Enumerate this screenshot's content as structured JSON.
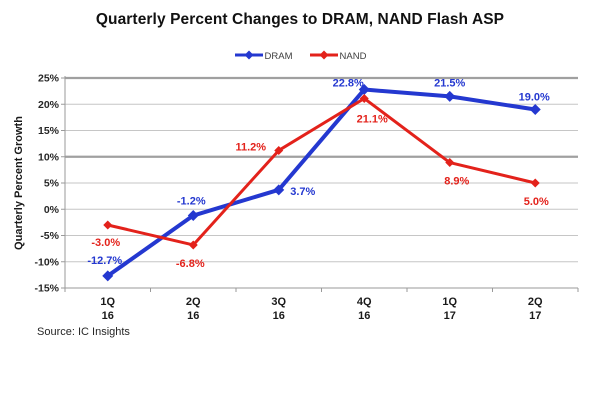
{
  "chart_data": {
    "type": "line",
    "title": "Quarterly Percent Changes to DRAM, NAND Flash ASP",
    "ylabel": "Quarterly Percent Growth",
    "xlabel": "",
    "source": "Source: IC Insights",
    "categories": [
      "1Q",
      "2Q",
      "3Q",
      "4Q",
      "1Q",
      "2Q"
    ],
    "category_years": [
      "16",
      "16",
      "16",
      "16",
      "17",
      "17"
    ],
    "ylim": [
      -15,
      25
    ],
    "yticks": [
      25,
      20,
      15,
      10,
      5,
      0,
      -5,
      -10,
      -15
    ],
    "ytick_suffix": "%",
    "grid": true,
    "emphasized_gridlines": [
      25,
      10
    ],
    "legend_position": "top-center",
    "series": [
      {
        "name": "DRAM",
        "color": "#2438d0",
        "stroke_width": 4,
        "marker": "diamond",
        "values": [
          -12.7,
          -1.2,
          3.7,
          22.8,
          21.5,
          19.0
        ],
        "labels": [
          "-12.7%",
          "-1.2%",
          "3.7%",
          "22.8%",
          "21.5%",
          "19.0%"
        ],
        "label_offsets": [
          [
            -3,
            -16
          ],
          [
            -2,
            -15
          ],
          [
            24,
            1
          ],
          [
            -16,
            -7
          ],
          [
            0,
            -14
          ],
          [
            -1,
            -13
          ]
        ]
      },
      {
        "name": "NAND",
        "color": "#e3221b",
        "stroke_width": 3,
        "marker": "diamond",
        "values": [
          -3.0,
          -6.8,
          11.2,
          21.1,
          8.9,
          5.0
        ],
        "labels": [
          "-3.0%",
          "-6.8%",
          "11.2%",
          "21.1%",
          "8.9%",
          "5.0%"
        ],
        "label_offsets": [
          [
            -2,
            17
          ],
          [
            -3,
            18
          ],
          [
            -28,
            -4
          ],
          [
            8,
            20
          ],
          [
            7,
            18
          ],
          [
            1,
            18
          ]
        ]
      }
    ]
  }
}
